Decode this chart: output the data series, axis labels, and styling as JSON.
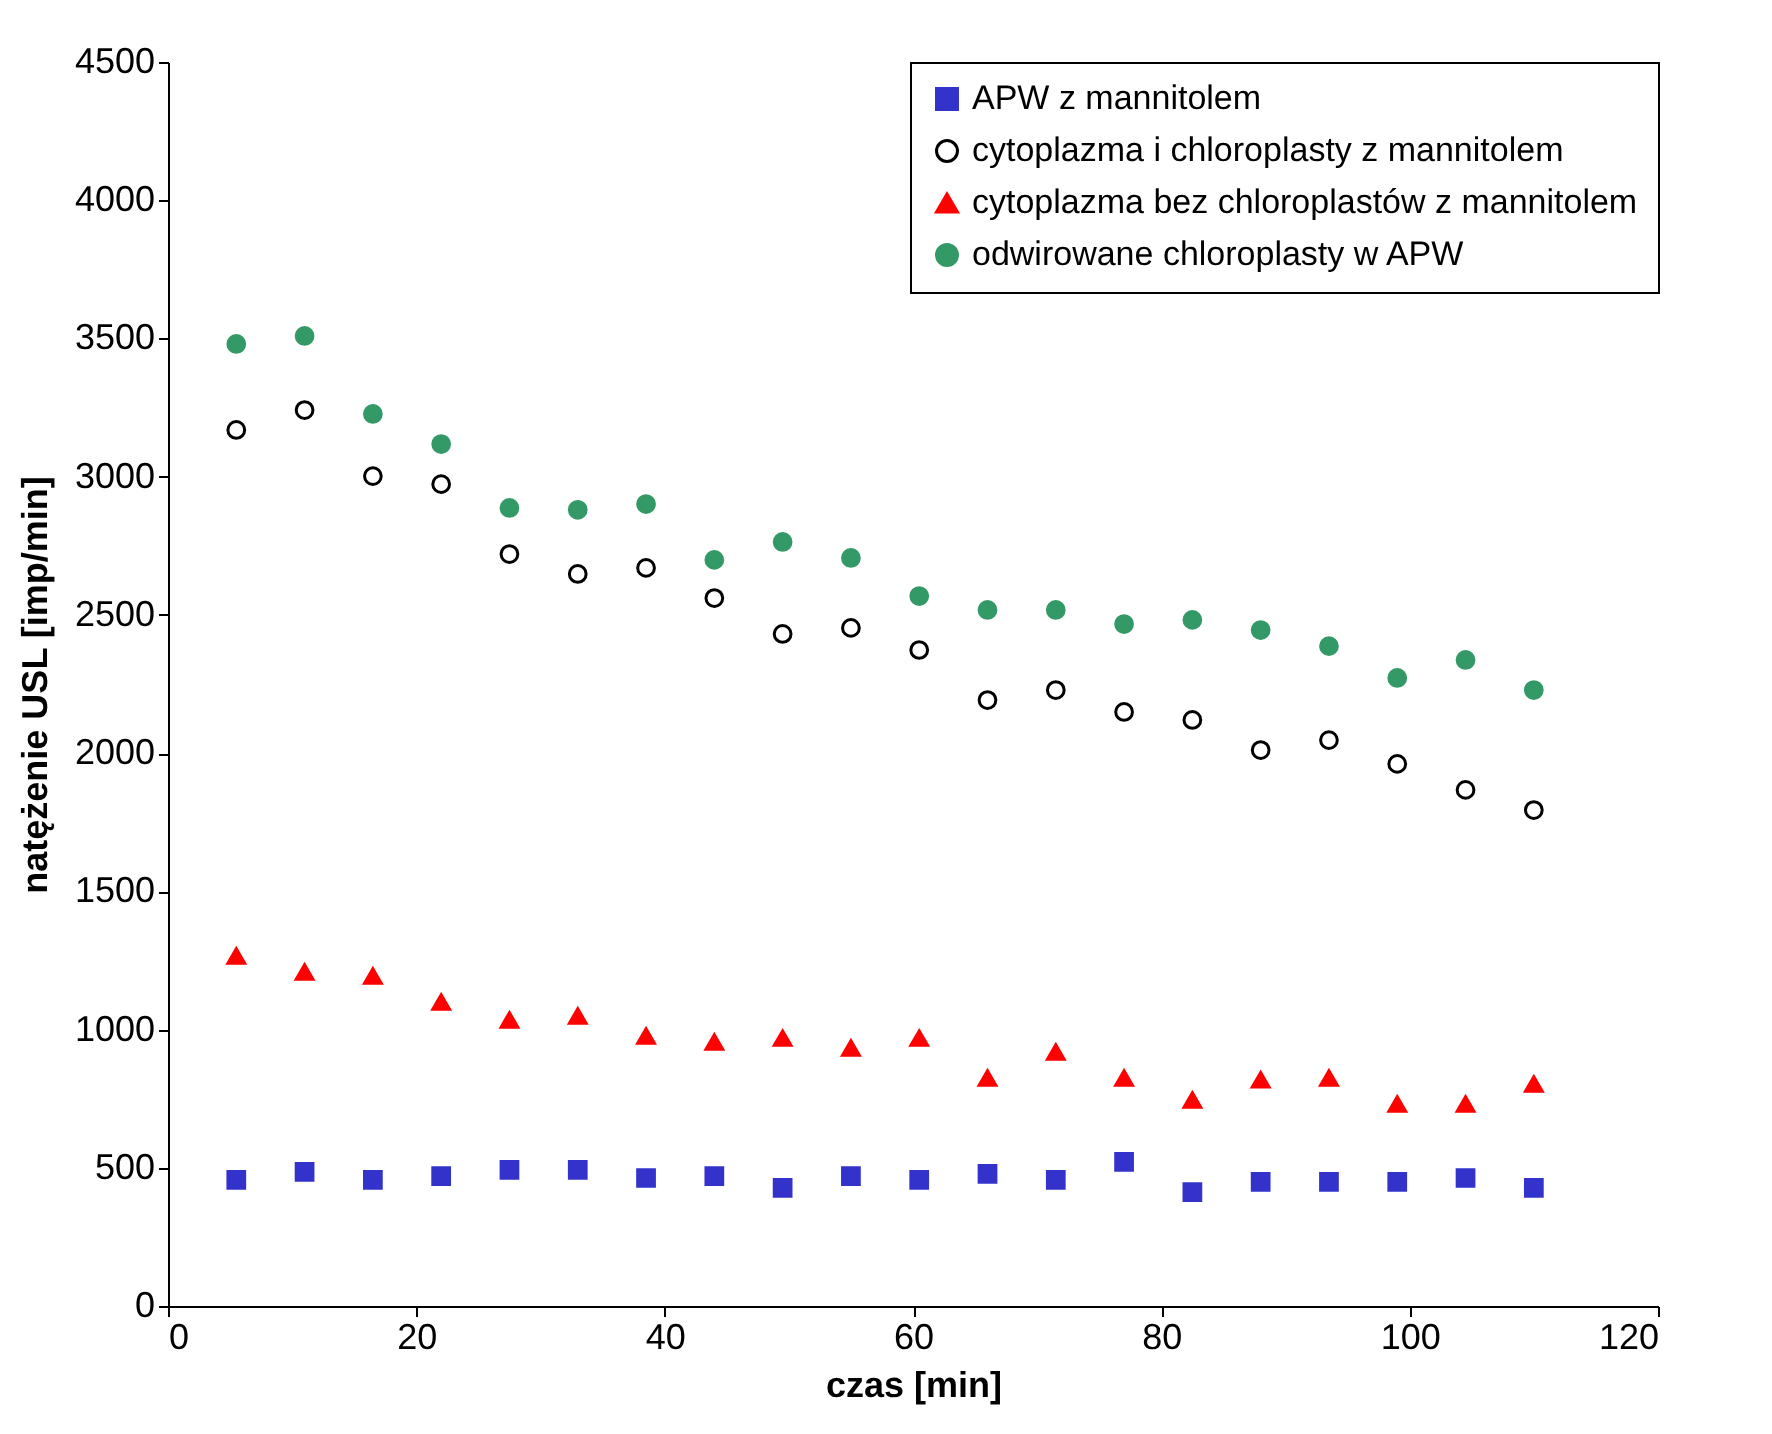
{
  "chart_data": {
    "type": "scatter",
    "xlabel": "czas [min]",
    "ylabel": "natężenie USL [imp/min]",
    "x": [
      5.5,
      11,
      16.5,
      22,
      27.5,
      33,
      38.5,
      44,
      49.5,
      55,
      60.5,
      66,
      71.5,
      77,
      82.5,
      88,
      93.5,
      99,
      104.5,
      110
    ],
    "series": [
      {
        "name": "APW z mannitolem",
        "color": "#3333cc",
        "marker": "square",
        "values": [
          456,
          485,
          456,
          470,
          492,
          492,
          463,
          470,
          427,
          470,
          456,
          478,
          456,
          521,
          412,
          449,
          449,
          449,
          463,
          427
        ]
      },
      {
        "name": "cytoplazma i chloroplasty z mannitolem",
        "color": "#000000",
        "marker": "circle-open",
        "values": [
          3169,
          3241,
          3002,
          2973,
          2720,
          2648,
          2670,
          2561,
          2431,
          2453,
          2373,
          2192,
          2228,
          2149,
          2120,
          2011,
          2047,
          1961,
          1867,
          1794
        ]
      },
      {
        "name": "cytoplazma bez chloroplastów z mannitolem",
        "color": "#ff0000",
        "marker": "triangle",
        "values": [
          1266,
          1208,
          1194,
          1100,
          1035,
          1049,
          977,
          955,
          969,
          933,
          969,
          825,
          919,
          825,
          745,
          818,
          825,
          731,
          731,
          803
        ]
      },
      {
        "name": "odwirowane chloroplasty w APW",
        "color": "#339966",
        "marker": "circle",
        "values": [
          3480,
          3509,
          3227,
          3118,
          2887,
          2880,
          2901,
          2699,
          2764,
          2706,
          2568,
          2518,
          2518,
          2467,
          2482,
          2445,
          2387,
          2272,
          2337,
          2228
        ]
      }
    ],
    "xlim": [
      0,
      120
    ],
    "xticks": [
      0,
      20,
      40,
      60,
      80,
      100,
      120
    ],
    "ylim": [
      0,
      4500
    ],
    "yticks": [
      0,
      500,
      1000,
      1500,
      2000,
      2500,
      3000,
      3500,
      4000,
      4500
    ],
    "grid": false,
    "legend": "top right"
  }
}
